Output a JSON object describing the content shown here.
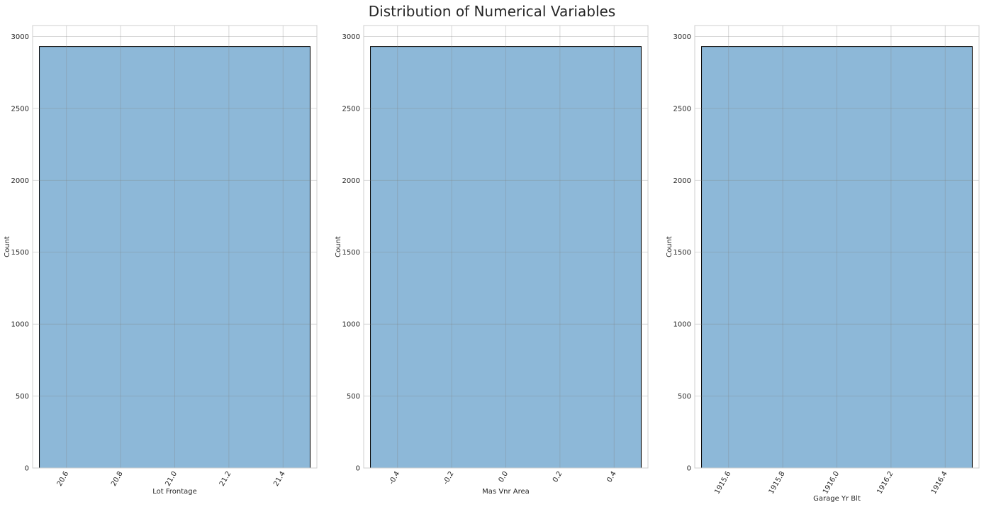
{
  "figure": {
    "title": "Distribution of Numerical Variables"
  },
  "chart_data": [
    {
      "type": "bar",
      "xlabel": "Lot Frontage",
      "ylabel": "Count",
      "xlim": [
        20.475,
        21.525
      ],
      "ylim": [
        0,
        3076
      ],
      "xticks": [
        20.6,
        20.8,
        21.0,
        21.2,
        21.4
      ],
      "xtick_labels": [
        "20.6",
        "20.8",
        "21.0",
        "21.2",
        "21.4"
      ],
      "xtick_rotation_deg": 60,
      "yticks": [
        0,
        500,
        1000,
        1500,
        2000,
        2500,
        3000
      ],
      "ytick_labels": [
        "0",
        "500",
        "1000",
        "1500",
        "2000",
        "2500",
        "3000"
      ],
      "bins": [
        {
          "x0": 20.5,
          "x1": 21.5,
          "count": 2930
        }
      ],
      "bar_color": "#8db8d8",
      "bar_edge_color": "#000000",
      "grid": true
    },
    {
      "type": "bar",
      "xlabel": "Mas Vnr Area",
      "ylabel": "Count",
      "xlim": [
        -0.525,
        0.525
      ],
      "ylim": [
        0,
        3076
      ],
      "xticks": [
        -0.4,
        -0.2,
        0.0,
        0.2,
        0.4
      ],
      "xtick_labels": [
        "-0.4",
        "-0.2",
        "0.0",
        "0.2",
        "0.4"
      ],
      "xtick_rotation_deg": 60,
      "yticks": [
        0,
        500,
        1000,
        1500,
        2000,
        2500,
        3000
      ],
      "ytick_labels": [
        "0",
        "500",
        "1000",
        "1500",
        "2000",
        "2500",
        "3000"
      ],
      "bins": [
        {
          "x0": -0.5,
          "x1": 0.5,
          "count": 2930
        }
      ],
      "bar_color": "#8db8d8",
      "bar_edge_color": "#000000",
      "grid": true
    },
    {
      "type": "bar",
      "xlabel": "Garage Yr Blt",
      "ylabel": "Count",
      "xlim": [
        1915.475,
        1916.525
      ],
      "ylim": [
        0,
        3076
      ],
      "xticks": [
        1915.6,
        1915.8,
        1916.0,
        1916.2,
        1916.4
      ],
      "xtick_labels": [
        "1915.6",
        "1915.8",
        "1916.0",
        "1916.2",
        "1916.4"
      ],
      "xtick_rotation_deg": 60,
      "yticks": [
        0,
        500,
        1000,
        1500,
        2000,
        2500,
        3000
      ],
      "ytick_labels": [
        "0",
        "500",
        "1000",
        "1500",
        "2000",
        "2500",
        "3000"
      ],
      "bins": [
        {
          "x0": 1915.5,
          "x1": 1916.5,
          "count": 2930
        }
      ],
      "bar_color": "#8db8d8",
      "bar_edge_color": "#000000",
      "grid": true
    }
  ]
}
